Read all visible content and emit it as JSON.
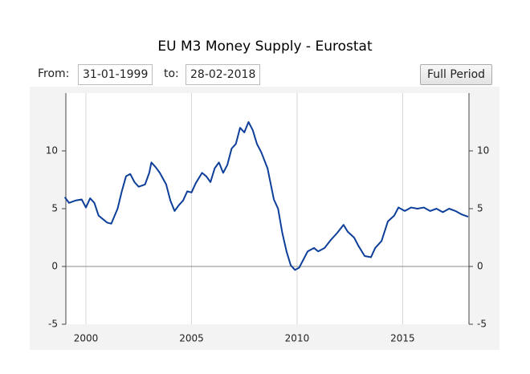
{
  "chart_data": {
    "type": "line",
    "title": "EU M3 Money Supply - Eurostat",
    "controls": {
      "from_label": "From:",
      "from_value": "31-01-1999",
      "to_label": "to:",
      "to_value": "28-02-2018",
      "button": "Full Period"
    },
    "x": [
      1999.0,
      1999.2,
      1999.5,
      1999.8,
      2000.0,
      2000.2,
      2000.4,
      2000.6,
      2000.8,
      2001.0,
      2001.2,
      2001.5,
      2001.7,
      2001.9,
      2002.1,
      2002.3,
      2002.5,
      2002.8,
      2003.0,
      2003.1,
      2003.3,
      2003.5,
      2003.8,
      2004.0,
      2004.2,
      2004.4,
      2004.6,
      2004.8,
      2005.0,
      2005.2,
      2005.5,
      2005.7,
      2005.9,
      2006.1,
      2006.3,
      2006.5,
      2006.7,
      2006.9,
      2007.1,
      2007.3,
      2007.5,
      2007.7,
      2007.9,
      2008.1,
      2008.3,
      2008.6,
      2008.9,
      2009.1,
      2009.3,
      2009.5,
      2009.7,
      2009.9,
      2010.1,
      2010.3,
      2010.5,
      2010.8,
      2011.0,
      2011.3,
      2011.6,
      2011.9,
      2012.2,
      2012.4,
      2012.7,
      2012.9,
      2013.2,
      2013.5,
      2013.7,
      2014.0,
      2014.3,
      2014.6,
      2014.8,
      2015.1,
      2015.4,
      2015.7,
      2016.0,
      2016.3,
      2016.6,
      2016.9,
      2017.2,
      2017.5,
      2017.8,
      2018.1
    ],
    "series": [
      {
        "name": "EU M3 Money Supply",
        "color": "#0d3f9a",
        "values": [
          6.0,
          5.5,
          5.7,
          5.8,
          5.1,
          5.9,
          5.5,
          4.4,
          4.1,
          3.8,
          3.7,
          5.0,
          6.5,
          7.8,
          8.0,
          7.3,
          6.9,
          7.1,
          8.1,
          9.0,
          8.6,
          8.1,
          7.1,
          5.7,
          4.8,
          5.3,
          5.7,
          6.5,
          6.4,
          7.2,
          8.1,
          7.8,
          7.3,
          8.5,
          9.0,
          8.1,
          8.8,
          10.2,
          10.6,
          12.0,
          11.6,
          12.5,
          11.8,
          10.6,
          9.9,
          8.5,
          5.8,
          5.0,
          2.9,
          1.3,
          0.1,
          -0.3,
          -0.1,
          0.6,
          1.3,
          1.6,
          1.3,
          1.6,
          2.3,
          2.9,
          3.6,
          3.0,
          2.5,
          1.8,
          0.9,
          0.8,
          1.6,
          2.2,
          3.9,
          4.4,
          5.1,
          4.8,
          5.1,
          5.0,
          5.1,
          4.8,
          5.0,
          4.7,
          5.0,
          4.8,
          4.5,
          4.3
        ]
      }
    ],
    "xlim": [
      1999.05,
      2018.14
    ],
    "xticks": [
      2000,
      2005,
      2010,
      2015
    ],
    "ylim": [
      -5,
      15
    ],
    "yticks": [
      -5,
      0,
      5,
      10
    ],
    "grid": "x"
  }
}
